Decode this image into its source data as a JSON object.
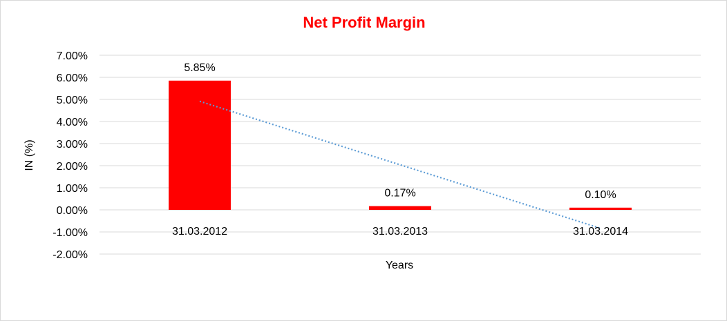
{
  "chart_data": {
    "type": "bar",
    "title": "Net Profit Margin",
    "xlabel": "Years",
    "ylabel": "IN (%)",
    "categories": [
      "31.03.2012",
      "31.03.2013",
      "31.03.2014"
    ],
    "values": [
      5.85,
      0.17,
      0.1
    ],
    "data_labels": [
      "5.85%",
      "0.17%",
      "0.10%"
    ],
    "ylim": [
      -2,
      7
    ],
    "yticks": [
      7,
      6,
      5,
      4,
      3,
      2,
      1,
      0,
      -1,
      -2
    ],
    "ytick_labels": [
      "7.00%",
      "6.00%",
      "5.00%",
      "4.00%",
      "3.00%",
      "2.00%",
      "1.00%",
      "0.00%",
      "-1.00%",
      "-2.00%"
    ],
    "grid": true,
    "legend": "none",
    "trendline": {
      "type": "linear",
      "style": "dotted"
    },
    "colors": {
      "title": "#FF0000",
      "bar": "#FF0000",
      "trendline": "#5B9BD5",
      "gridline": "#D9D9D9"
    }
  }
}
